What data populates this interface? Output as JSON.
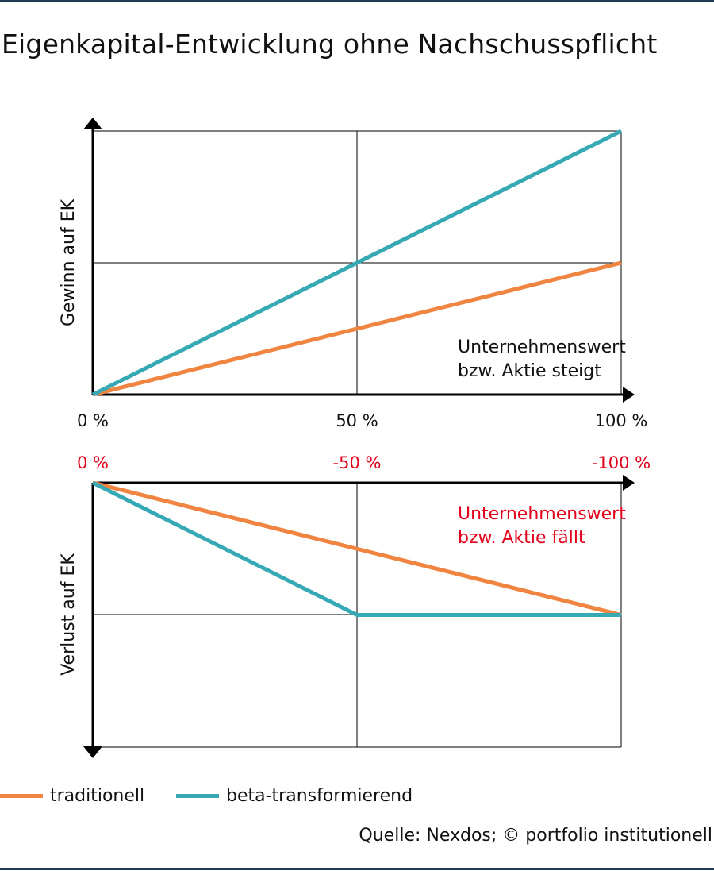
{
  "title": "Eigenkapital-Entwicklung ohne Nachschusspflicht",
  "source": "Quelle: Nexdos; © portfolio institutionell",
  "colors": {
    "traditionell": "#f08441",
    "beta": "#36a9b5",
    "loss_labels": "#e3001b",
    "axis": "#000000"
  },
  "legend": {
    "items": [
      {
        "label": "traditionell",
        "color": "#f08441"
      },
      {
        "label": "beta-transformierend",
        "color": "#36a9b5"
      }
    ]
  },
  "chart_data": [
    {
      "type": "line",
      "ylabel": "Gewinn auf EK",
      "annotation": [
        "Unternehmenswert",
        "bzw. Aktie steigt"
      ],
      "x_tick_labels": [
        "0 %",
        "50 %",
        "100 %"
      ],
      "x": [
        0,
        50,
        100
      ],
      "xlim": [
        0,
        100
      ],
      "ylim": [
        0,
        2
      ],
      "grid": true,
      "series": [
        {
          "name": "traditionell",
          "color": "#f08441",
          "values": [
            0,
            0.5,
            1
          ]
        },
        {
          "name": "beta-transformierend",
          "color": "#36a9b5",
          "values": [
            0,
            1,
            2
          ]
        }
      ]
    },
    {
      "type": "line",
      "ylabel": "Verlust auf EK",
      "annotation": [
        "Unternehmenswert",
        "bzw. Aktie fällt"
      ],
      "x_tick_labels": [
        "0 %",
        "-50 %",
        "-100 %"
      ],
      "x": [
        0,
        -50,
        -100
      ],
      "xlim": [
        0,
        -100
      ],
      "ylim": [
        0,
        -2
      ],
      "grid": true,
      "series": [
        {
          "name": "traditionell",
          "color": "#f08441",
          "values": [
            0,
            -0.5,
            -1
          ]
        },
        {
          "name": "beta-transformierend",
          "color": "#36a9b5",
          "values": [
            0,
            -1,
            -1
          ]
        }
      ]
    }
  ]
}
